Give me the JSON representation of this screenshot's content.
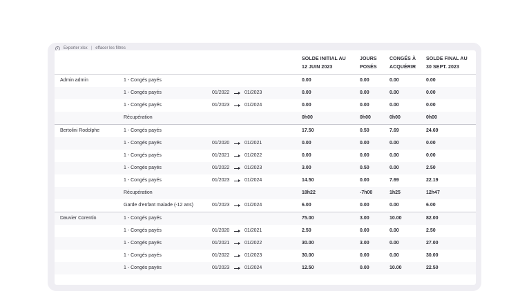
{
  "toolbar": {
    "export_label": "Exporter xlsx",
    "separator": "|",
    "clear_filters_label": "effacer les filtres"
  },
  "table": {
    "headers": {
      "solde_initial": [
        "SOLDE INITIAL AU",
        "12 JUIN 2023"
      ],
      "jours_poses": [
        "JOURS",
        "POSÉS"
      ],
      "conges_acquerir": [
        "CONGÉS À",
        "ACQUÉRIR"
      ],
      "solde_final": [
        "SOLDE FINAL AU",
        "30 SEPT. 2023"
      ]
    },
    "rows": [
      {
        "name": "Admin admin",
        "type": "1 - Congés payés",
        "from": "",
        "to": "",
        "solde_initial": "0.00",
        "jours_poses": "0.00",
        "conges_acquerir": "0.00",
        "solde_final": "0.00"
      },
      {
        "name": "",
        "type": "1 - Congés payés",
        "from": "01/2022",
        "to": "01/2023",
        "solde_initial": "0.00",
        "jours_poses": "0.00",
        "conges_acquerir": "0.00",
        "solde_final": "0.00"
      },
      {
        "name": "",
        "type": "1 - Congés payés",
        "from": "01/2023",
        "to": "01/2024",
        "solde_initial": "0.00",
        "jours_poses": "0.00",
        "conges_acquerir": "0.00",
        "solde_final": "0.00"
      },
      {
        "name": "",
        "type": "Récupération",
        "from": "",
        "to": "",
        "solde_initial": "0h00",
        "jours_poses": "0h00",
        "conges_acquerir": "0h00",
        "solde_final": "0h00"
      },
      {
        "name": "Bertolini Rodolphe",
        "type": "1 - Congés payés",
        "from": "",
        "to": "",
        "solde_initial": "17.50",
        "jours_poses": "0.50",
        "conges_acquerir": "7.69",
        "solde_final": "24.69"
      },
      {
        "name": "",
        "type": "1 - Congés payés",
        "from": "01/2020",
        "to": "01/2021",
        "solde_initial": "0.00",
        "jours_poses": "0.00",
        "conges_acquerir": "0.00",
        "solde_final": "0.00"
      },
      {
        "name": "",
        "type": "1 - Congés payés",
        "from": "01/2021",
        "to": "01/2022",
        "solde_initial": "0.00",
        "jours_poses": "0.00",
        "conges_acquerir": "0.00",
        "solde_final": "0.00"
      },
      {
        "name": "",
        "type": "1 - Congés payés",
        "from": "01/2022",
        "to": "01/2023",
        "solde_initial": "3.00",
        "jours_poses": "0.50",
        "conges_acquerir": "0.00",
        "solde_final": "2.50"
      },
      {
        "name": "",
        "type": "1 - Congés payés",
        "from": "01/2023",
        "to": "01/2024",
        "solde_initial": "14.50",
        "jours_poses": "0.00",
        "conges_acquerir": "7.69",
        "solde_final": "22.19"
      },
      {
        "name": "",
        "type": "Récupération",
        "from": "",
        "to": "",
        "solde_initial": "18h22",
        "jours_poses": "-7h00",
        "conges_acquerir": "1h25",
        "solde_final": "12h47"
      },
      {
        "name": "",
        "type": "Garde d'enfant malade (-12 ans)",
        "from": "01/2023",
        "to": "01/2024",
        "solde_initial": "6.00",
        "jours_poses": "0.00",
        "conges_acquerir": "0.00",
        "solde_final": "6.00"
      },
      {
        "name": "Dauvier Corentin",
        "type": "1 - Congés payés",
        "from": "",
        "to": "",
        "solde_initial": "75.00",
        "jours_poses": "3.00",
        "conges_acquerir": "10.00",
        "solde_final": "82.00"
      },
      {
        "name": "",
        "type": "1 - Congés payés",
        "from": "01/2020",
        "to": "01/2021",
        "solde_initial": "2.50",
        "jours_poses": "0.00",
        "conges_acquerir": "0.00",
        "solde_final": "2.50"
      },
      {
        "name": "",
        "type": "1 - Congés payés",
        "from": "01/2021",
        "to": "01/2022",
        "solde_initial": "30.00",
        "jours_poses": "3.00",
        "conges_acquerir": "0.00",
        "solde_final": "27.00"
      },
      {
        "name": "",
        "type": "1 - Congés payés",
        "from": "01/2022",
        "to": "01/2023",
        "solde_initial": "30.00",
        "jours_poses": "0.00",
        "conges_acquerir": "0.00",
        "solde_final": "30.00"
      },
      {
        "name": "",
        "type": "1 - Congés payés",
        "from": "01/2023",
        "to": "01/2024",
        "solde_initial": "12.50",
        "jours_poses": "0.00",
        "conges_acquerir": "10.00",
        "solde_final": "22.50"
      }
    ]
  }
}
